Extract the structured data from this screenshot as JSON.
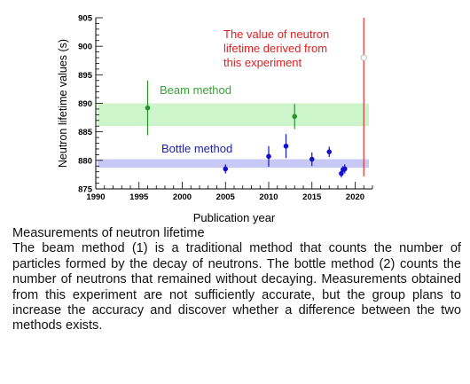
{
  "chart_data": {
    "type": "scatter",
    "xlabel": "Publication year",
    "ylabel": "Neutron lifetime values (s)",
    "xlim": [
      1990,
      2022
    ],
    "ylim": [
      875,
      905
    ],
    "x_ticks": [
      "1990",
      "1995",
      "2000",
      "2005",
      "2010",
      "2015",
      "2020"
    ],
    "y_ticks": [
      "875",
      "880",
      "885",
      "890",
      "895",
      "900",
      "905"
    ],
    "bands": [
      {
        "name": "Beam method",
        "from": 886,
        "to": 890,
        "color": "#ccf5cc"
      },
      {
        "name": "Bottle method",
        "from": 878.7,
        "to": 880.2,
        "color": "#c8c8f6"
      }
    ],
    "series": [
      {
        "name": "Beam method",
        "color": "#2f8f2f",
        "points": [
          {
            "x": 1996,
            "y": 889.2,
            "err": 4.8
          },
          {
            "x": 2013,
            "y": 887.7,
            "err": 2.2
          }
        ]
      },
      {
        "name": "Bottle method",
        "color": "#1010cc",
        "points": [
          {
            "x": 2005,
            "y": 878.5,
            "err": 0.8
          },
          {
            "x": 2010,
            "y": 880.7,
            "err": 1.8
          },
          {
            "x": 2012,
            "y": 882.5,
            "err": 2.1
          },
          {
            "x": 2015,
            "y": 880.2,
            "err": 1.2
          },
          {
            "x": 2017,
            "y": 881.5,
            "err": 0.9
          },
          {
            "x": 2018.4,
            "y": 877.7,
            "err": 0.7
          },
          {
            "x": 2018.6,
            "y": 878.4,
            "err": 0.6
          },
          {
            "x": 2018.8,
            "y": 878.5,
            "err": 0.8
          }
        ]
      }
    ],
    "this_experiment": {
      "x": 2021,
      "y": 898,
      "line_color": "#e03030"
    },
    "annotations": {
      "beam": "Beam method",
      "bottle": "Bottle method",
      "experiment": [
        "The value of neutron",
        "lifetime derived from",
        "this experiment"
      ]
    },
    "colors": {
      "beam_text": "#3aa03a",
      "bottle_text": "#2020aa",
      "experiment_text": "#e02020"
    }
  },
  "caption": {
    "title": "Measurements of neutron lifetime",
    "body": "The beam method (1) is a traditional method that counts the number of particles formed by the decay of neutrons. The bottle method (2) counts the number of neutrons that remained without decaying. Measurements obtained from this experiment are not sufficiently accurate, but the group plans to increase the accuracy and discover whether a difference between the two methods exists."
  }
}
